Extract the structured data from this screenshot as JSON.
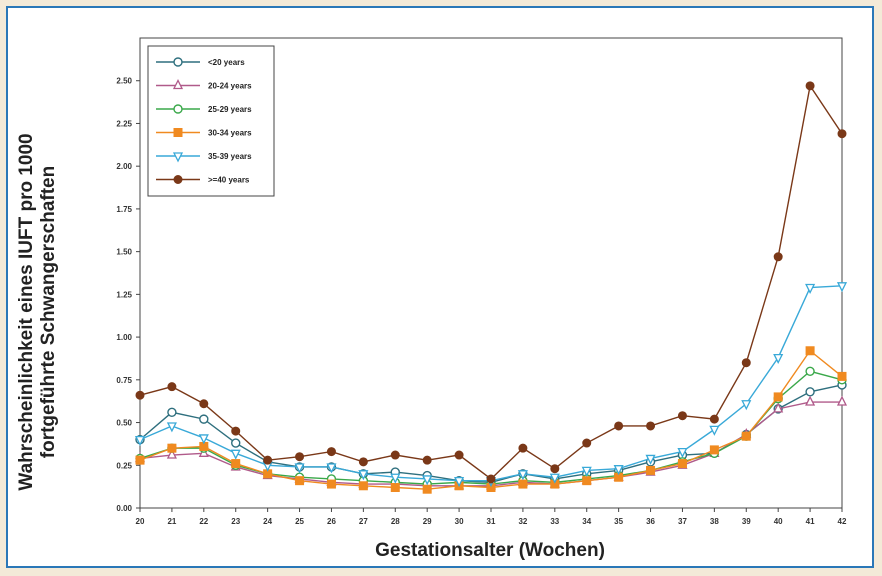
{
  "chart_data": {
    "type": "line",
    "xlabel": "Gestationsalter (Wochen)",
    "ylabel_line1": "Wahrscheinlichkeit eines IUFT pro 1000",
    "ylabel_line2": "fortgeführte Schwangerschaften",
    "x": [
      20,
      21,
      22,
      23,
      24,
      25,
      26,
      27,
      28,
      29,
      30,
      31,
      32,
      33,
      34,
      35,
      36,
      37,
      38,
      39,
      40,
      41,
      42
    ],
    "ylim": [
      0,
      2.75
    ],
    "yticks": [
      "0.00",
      "0.25",
      "0.50",
      "0.75",
      "1.00",
      "1.25",
      "1.50",
      "1.75",
      "2.00",
      "2.25",
      "2.50"
    ],
    "ytick_values": [
      0,
      0.25,
      0.5,
      0.75,
      1.0,
      1.25,
      1.5,
      1.75,
      2.0,
      2.25,
      2.5
    ],
    "grid": false,
    "legend_position": "top-left",
    "series": [
      {
        "name": "<20 years",
        "color": "#2e6f7e",
        "marker": "open-circle",
        "values": [
          0.4,
          0.56,
          0.52,
          0.38,
          0.27,
          0.24,
          0.24,
          0.2,
          0.21,
          0.19,
          0.16,
          0.15,
          0.2,
          0.17,
          0.2,
          0.22,
          0.27,
          0.31,
          0.32,
          0.43,
          0.58,
          0.68,
          0.72
        ]
      },
      {
        "name": "20-24 years",
        "color": "#b05a8a",
        "marker": "open-triangle",
        "values": [
          0.29,
          0.31,
          0.32,
          0.24,
          0.19,
          0.17,
          0.15,
          0.14,
          0.14,
          0.13,
          0.13,
          0.13,
          0.15,
          0.14,
          0.16,
          0.18,
          0.21,
          0.25,
          0.32,
          0.43,
          0.58,
          0.62,
          0.62
        ]
      },
      {
        "name": "25-29 years",
        "color": "#3aa84a",
        "marker": "open-circle",
        "values": [
          0.29,
          0.35,
          0.35,
          0.25,
          0.2,
          0.18,
          0.17,
          0.16,
          0.15,
          0.14,
          0.15,
          0.14,
          0.16,
          0.15,
          0.17,
          0.19,
          0.22,
          0.27,
          0.32,
          0.42,
          0.64,
          0.8,
          0.75
        ]
      },
      {
        "name": "30-34 years",
        "color": "#f08a20",
        "marker": "filled-square",
        "values": [
          0.28,
          0.35,
          0.36,
          0.26,
          0.2,
          0.16,
          0.14,
          0.13,
          0.12,
          0.11,
          0.13,
          0.12,
          0.14,
          0.14,
          0.16,
          0.18,
          0.22,
          0.26,
          0.34,
          0.42,
          0.65,
          0.92,
          0.77
        ]
      },
      {
        "name": "35-39 years",
        "color": "#39a9d8",
        "marker": "open-down-triangle",
        "values": [
          0.4,
          0.48,
          0.41,
          0.32,
          0.25,
          0.24,
          0.24,
          0.2,
          0.18,
          0.17,
          0.16,
          0.16,
          0.2,
          0.18,
          0.22,
          0.23,
          0.29,
          0.33,
          0.46,
          0.61,
          0.88,
          1.29,
          1.3
        ]
      },
      {
        "name": ">=40 years",
        "color": "#7a3818",
        "marker": "filled-circle",
        "values": [
          0.66,
          0.71,
          0.61,
          0.45,
          0.28,
          0.3,
          0.33,
          0.27,
          0.31,
          0.28,
          0.31,
          0.17,
          0.35,
          0.23,
          0.38,
          0.48,
          0.48,
          0.54,
          0.52,
          0.85,
          1.47,
          2.47,
          2.19
        ]
      }
    ]
  }
}
